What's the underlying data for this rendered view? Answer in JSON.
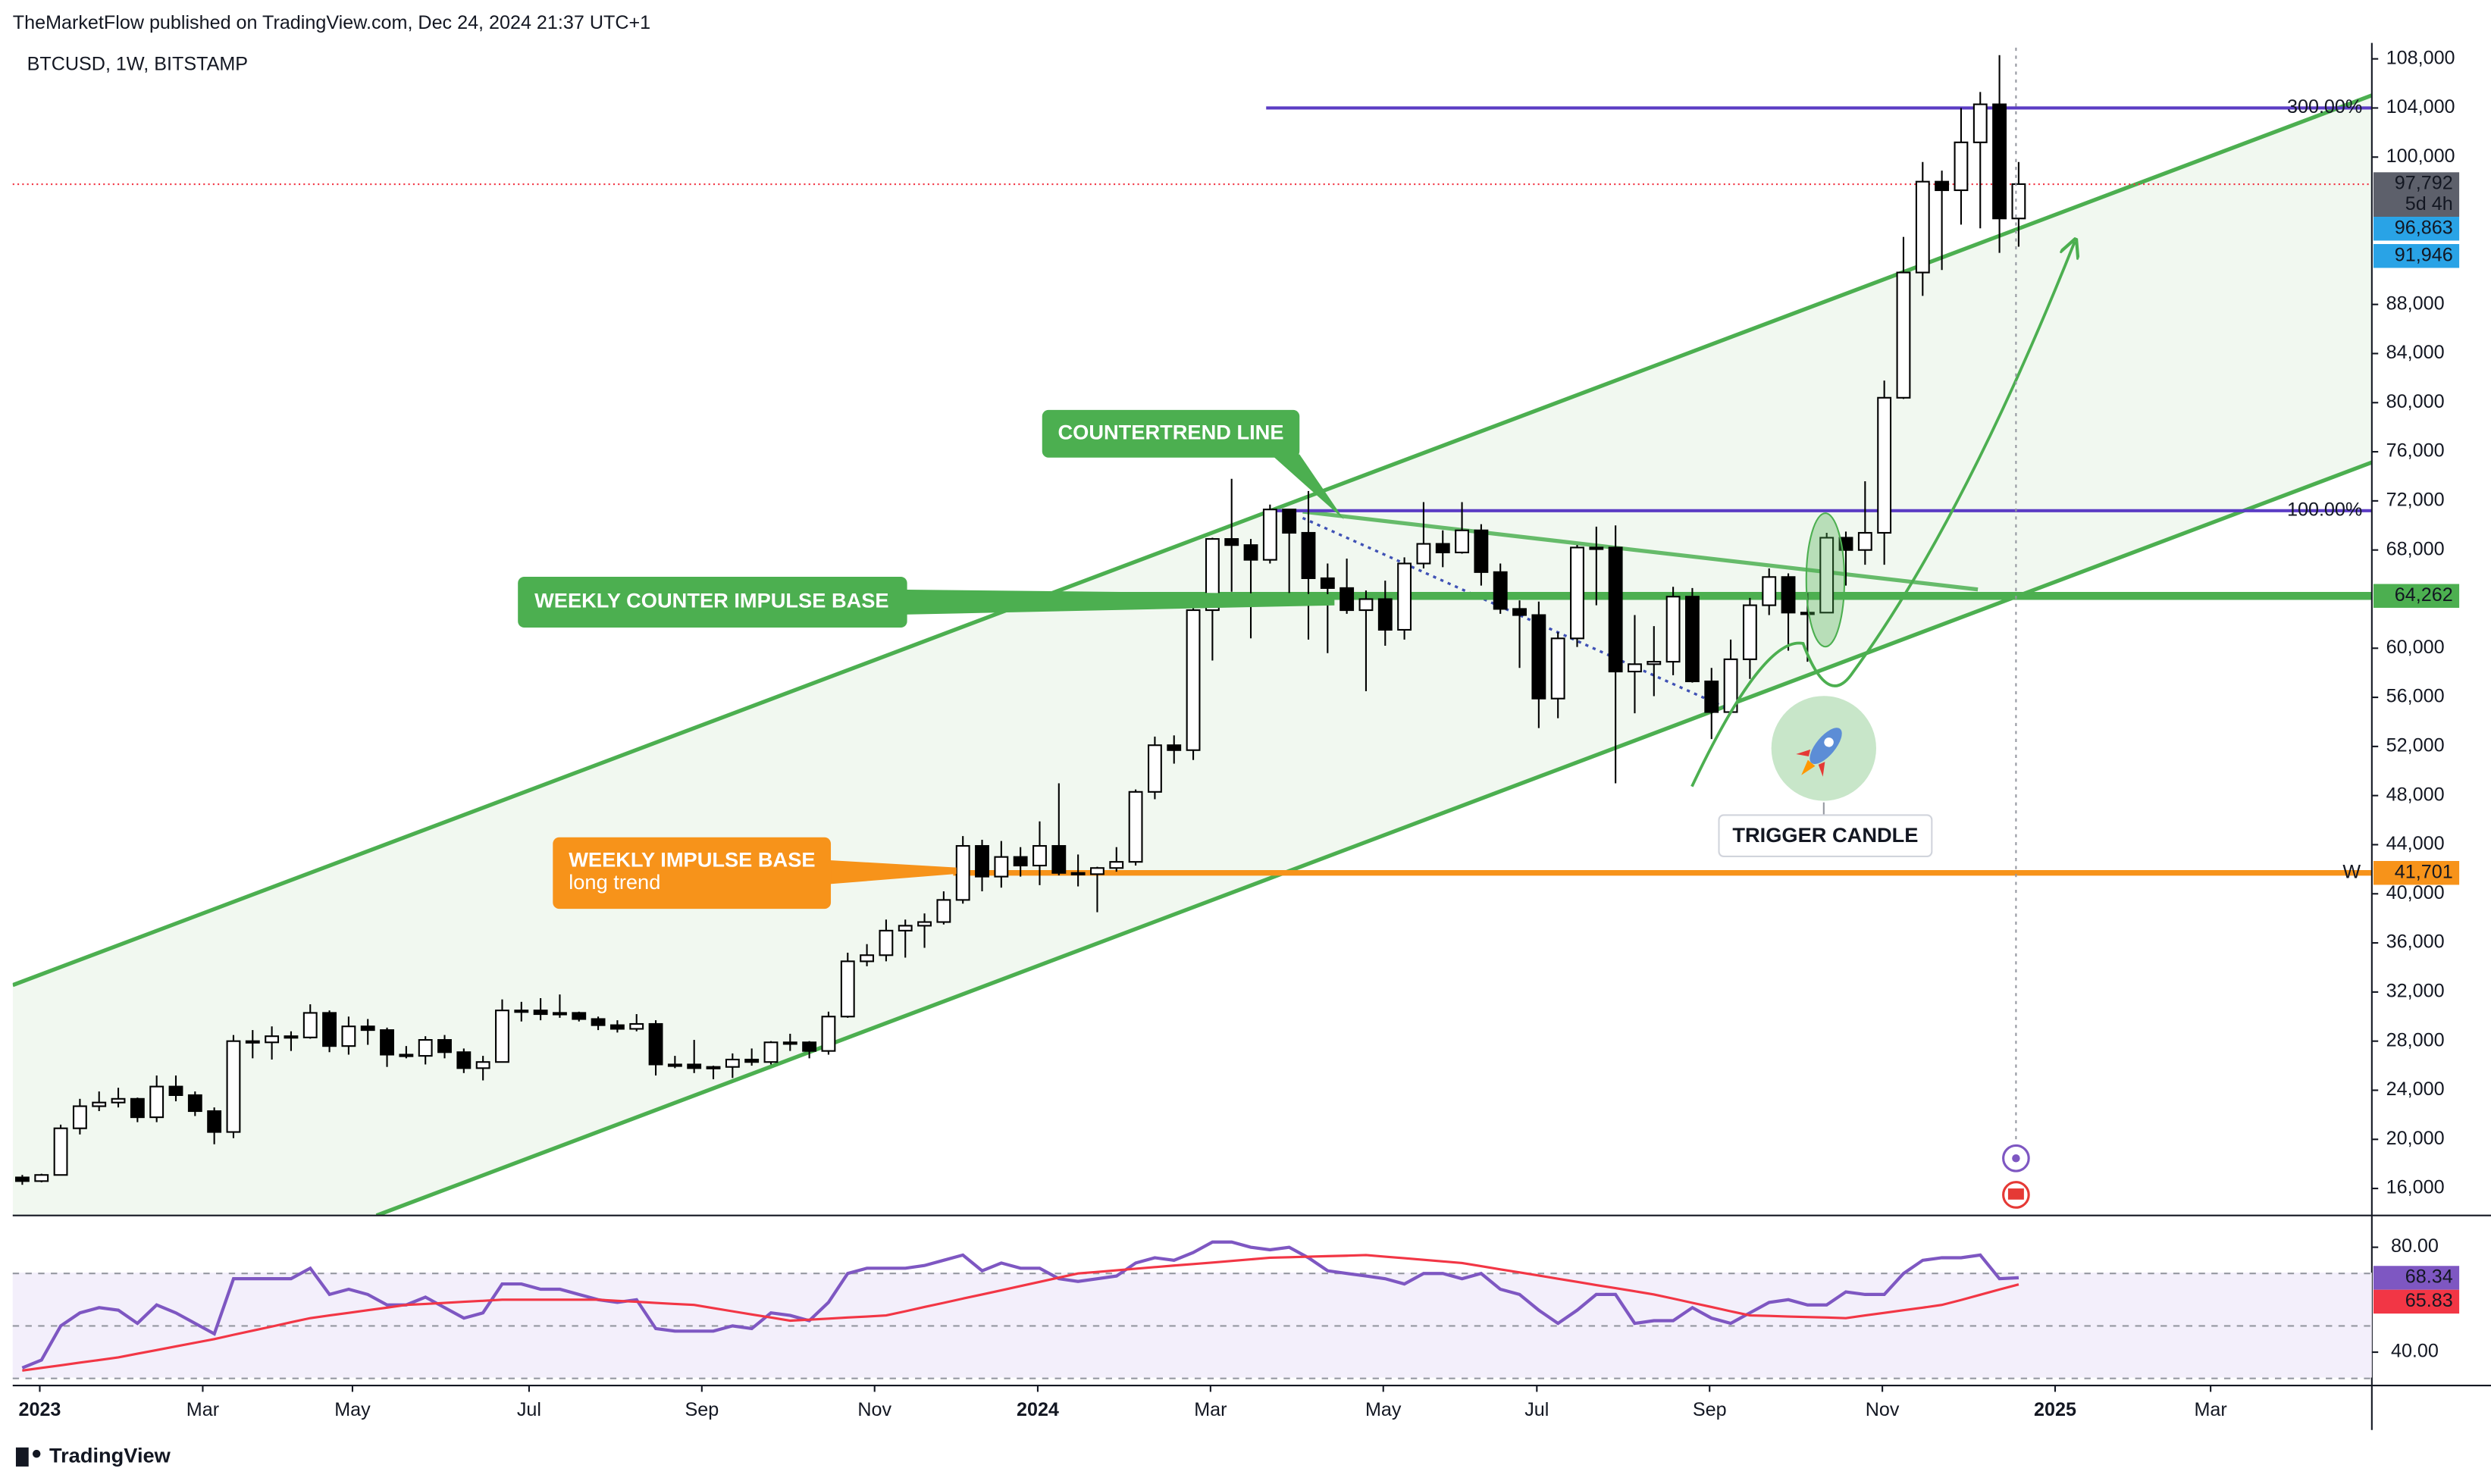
{
  "chart_data": {
    "type": "candlestick",
    "header": "TheMarketFlow published on TradingView.com, Dec 24, 2024 21:37 UTC+1",
    "title": "BTCUSD, 1W, BITSTAMP",
    "footer": "TradingView",
    "categories": [
      null,
      null,
      null,
      null,
      null,
      null,
      null,
      null,
      null,
      null,
      null,
      null,
      null,
      null,
      null,
      null,
      null,
      null,
      null,
      null,
      null,
      null,
      null,
      null,
      null,
      null,
      null,
      null,
      null,
      null,
      null,
      null,
      null,
      null,
      null,
      null,
      null,
      null,
      null,
      null,
      null,
      null,
      null,
      null,
      null,
      null,
      null,
      null,
      null,
      null,
      null,
      null,
      null,
      null,
      null,
      null,
      null,
      null,
      null,
      null,
      null,
      null,
      null,
      null,
      null,
      null,
      null,
      null,
      null,
      null,
      null,
      null,
      null,
      null,
      null,
      null,
      null,
      null,
      null,
      null,
      null,
      null,
      null,
      null,
      null,
      null,
      null,
      null,
      null,
      null,
      null,
      null,
      null,
      null,
      null,
      null,
      null,
      null,
      null,
      null,
      null,
      null,
      null,
      null,
      null
    ],
    "candles": [
      [
        16900,
        17100,
        16300,
        16600
      ],
      [
        16600,
        17200,
        16500,
        17100
      ],
      [
        17100,
        21200,
        17100,
        20900
      ],
      [
        20900,
        23300,
        20400,
        22700
      ],
      [
        22700,
        23900,
        22300,
        23000
      ],
      [
        23000,
        24200,
        22600,
        23300
      ],
      [
        23300,
        23400,
        21400,
        21800
      ],
      [
        21800,
        25200,
        21400,
        24300
      ],
      [
        24300,
        25200,
        23100,
        23600
      ],
      [
        23600,
        23900,
        21900,
        22300
      ],
      [
        22300,
        22600,
        19600,
        20600
      ],
      [
        20600,
        28500,
        20100,
        28000
      ],
      [
        28000,
        28900,
        26600,
        27900
      ],
      [
        27900,
        29200,
        26500,
        28400
      ],
      [
        28400,
        28800,
        27200,
        28300
      ],
      [
        28300,
        31000,
        28200,
        30300
      ],
      [
        30300,
        30500,
        27100,
        27600
      ],
      [
        27600,
        30000,
        26900,
        29200
      ],
      [
        29200,
        29800,
        27700,
        28900
      ],
      [
        28900,
        29100,
        25900,
        26900
      ],
      [
        26900,
        27600,
        26600,
        26800
      ],
      [
        26800,
        28400,
        26100,
        28100
      ],
      [
        28100,
        28500,
        26600,
        27100
      ],
      [
        27100,
        27400,
        25400,
        25800
      ],
      [
        25800,
        26800,
        24800,
        26300
      ],
      [
        26300,
        31400,
        26300,
        30500
      ],
      [
        30500,
        31200,
        29600,
        30500
      ],
      [
        30500,
        31500,
        29700,
        30200
      ],
      [
        30200,
        31800,
        29900,
        30300
      ],
      [
        30300,
        30400,
        29600,
        29800
      ],
      [
        29800,
        30000,
        28900,
        29300
      ],
      [
        29300,
        29700,
        28700,
        29000
      ],
      [
        29000,
        30200,
        28800,
        29400
      ],
      [
        29400,
        29700,
        25200,
        26100
      ],
      [
        26100,
        26800,
        25800,
        26100
      ],
      [
        26100,
        28100,
        25400,
        25800
      ],
      [
        25800,
        26000,
        24900,
        25900
      ],
      [
        25900,
        27000,
        25000,
        26500
      ],
      [
        26500,
        27400,
        26000,
        26300
      ],
      [
        26300,
        28000,
        26100,
        27900
      ],
      [
        27900,
        28600,
        27200,
        27900
      ],
      [
        27900,
        28000,
        26600,
        27200
      ],
      [
        27200,
        30400,
        26900,
        30000
      ],
      [
        30000,
        35200,
        29900,
        34500
      ],
      [
        34500,
        35900,
        34100,
        35000
      ],
      [
        35000,
        37900,
        34500,
        37000
      ],
      [
        37000,
        37900,
        34800,
        37400
      ],
      [
        37400,
        38400,
        35600,
        37700
      ],
      [
        37700,
        40200,
        37500,
        39500
      ],
      [
        39500,
        44700,
        39200,
        43900
      ],
      [
        43900,
        44400,
        40200,
        41400
      ],
      [
        41400,
        44300,
        40500,
        43000
      ],
      [
        43000,
        43800,
        41400,
        42300
      ],
      [
        42300,
        45900,
        40700,
        43900
      ],
      [
        43900,
        49000,
        41500,
        41700
      ],
      [
        41700,
        43200,
        40600,
        41600
      ],
      [
        41600,
        42200,
        38500,
        42100
      ],
      [
        42100,
        43800,
        41800,
        42600
      ],
      [
        42600,
        48500,
        42300,
        48300
      ],
      [
        48300,
        52800,
        47700,
        52100
      ],
      [
        52100,
        52900,
        50600,
        51700
      ],
      [
        51700,
        63900,
        50900,
        63100
      ],
      [
        63100,
        69000,
        59000,
        68900
      ],
      [
        68900,
        73800,
        64600,
        68400
      ],
      [
        68400,
        68900,
        60800,
        67200
      ],
      [
        67200,
        71700,
        66900,
        71300
      ],
      [
        71300,
        71300,
        64500,
        69400
      ],
      [
        69400,
        72800,
        60700,
        65700
      ],
      [
        65700,
        66900,
        59600,
        64900
      ],
      [
        64900,
        67300,
        62800,
        63100
      ],
      [
        63100,
        64700,
        56500,
        64000
      ],
      [
        64000,
        65500,
        60200,
        61500
      ],
      [
        61500,
        67400,
        60700,
        66900
      ],
      [
        66900,
        71900,
        66500,
        68500
      ],
      [
        68500,
        69600,
        66600,
        67800
      ],
      [
        67800,
        71900,
        67700,
        69600
      ],
      [
        69600,
        70100,
        65100,
        66200
      ],
      [
        66200,
        66900,
        62800,
        63200
      ],
      [
        63200,
        63900,
        58400,
        62700
      ],
      [
        62700,
        63800,
        53500,
        55900
      ],
      [
        55900,
        61300,
        54300,
        60800
      ],
      [
        60800,
        68400,
        60100,
        68200
      ],
      [
        68200,
        69900,
        63500,
        68200
      ],
      [
        68200,
        70000,
        49000,
        58100
      ],
      [
        58100,
        62700,
        54700,
        58700
      ],
      [
        58700,
        61800,
        56100,
        58900
      ],
      [
        58900,
        65000,
        57800,
        64200
      ],
      [
        64200,
        64900,
        57200,
        57300
      ],
      [
        57300,
        58400,
        52600,
        54800
      ],
      [
        54800,
        60700,
        54700,
        59100
      ],
      [
        59100,
        64100,
        57500,
        63500
      ],
      [
        63500,
        66500,
        62700,
        65800
      ],
      [
        65800,
        66100,
        59800,
        62900
      ],
      [
        62900,
        64500,
        58900,
        62900
      ],
      [
        62900,
        69400,
        62900,
        69000
      ],
      [
        69000,
        69500,
        65100,
        68000
      ],
      [
        68000,
        73600,
        66800,
        69400
      ],
      [
        69400,
        81800,
        66800,
        80400
      ],
      [
        80400,
        93500,
        80300,
        90600
      ],
      [
        90600,
        99600,
        88700,
        98000
      ],
      [
        98000,
        98900,
        90800,
        97300
      ],
      [
        97300,
        104000,
        94500,
        101200
      ],
      [
        101200,
        105300,
        94200,
        104300
      ],
      [
        104300,
        108300,
        92200,
        95000
      ],
      [
        95000,
        99600,
        92700,
        97800
      ]
    ],
    "up_color": "#ffffff",
    "down_color": "#000000",
    "outline_color": "#000000",
    "xlim": [
      -0.5,
      122.4
    ],
    "xticks": [
      {
        "value": 0.91,
        "label": "2023"
      },
      {
        "value": 9.4,
        "label": "Mar"
      },
      {
        "value": 17.2,
        "label": "May"
      },
      {
        "value": 26.4,
        "label": "Jul"
      },
      {
        "value": 35.4,
        "label": "Sep"
      },
      {
        "value": 44.4,
        "label": "Nov"
      },
      {
        "value": 52.9,
        "label": "2024"
      },
      {
        "value": 61.9,
        "label": "Mar"
      },
      {
        "value": 70.9,
        "label": "May"
      },
      {
        "value": 78.9,
        "label": "Jul"
      },
      {
        "value": 87.9,
        "label": "Sep"
      },
      {
        "value": 96.9,
        "label": "Nov"
      },
      {
        "value": 105.9,
        "label": "2025"
      },
      {
        "value": 114,
        "label": "Mar"
      }
    ],
    "ylim": [
      13800,
      109300
    ],
    "yticks": [
      {
        "value": 108000,
        "label": "108,000"
      },
      {
        "value": 104000,
        "label": "104,000"
      },
      {
        "value": 100000,
        "label": "100,000"
      },
      {
        "value": 88000,
        "label": "88,000"
      },
      {
        "value": 84000,
        "label": "84,000"
      },
      {
        "value": 80000,
        "label": "80,000"
      },
      {
        "value": 76000,
        "label": "76,000"
      },
      {
        "value": 72000,
        "label": "72,000"
      },
      {
        "value": 68000,
        "label": "68,000"
      },
      {
        "value": 60000,
        "label": "60,000"
      },
      {
        "value": 56000,
        "label": "56,000"
      },
      {
        "value": 52000,
        "label": "52,000"
      },
      {
        "value": 48000,
        "label": "48,000"
      },
      {
        "value": 44000,
        "label": "44,000"
      },
      {
        "value": 40000,
        "label": "40,000"
      },
      {
        "value": 36000,
        "label": "36,000"
      },
      {
        "value": 32000,
        "label": "32,000"
      },
      {
        "value": 28000,
        "label": "28,000"
      },
      {
        "value": 24000,
        "label": "24,000"
      },
      {
        "value": 20000,
        "label": "20,000"
      },
      {
        "value": 16000,
        "label": "16,000"
      }
    ],
    "levels": [
      {
        "value": 104000,
        "label": "300.00%",
        "color": "#5b3cc4",
        "style": "fib"
      },
      {
        "value": 71200,
        "label": "100.00%",
        "color": "#5b3cc4",
        "style": "fib"
      },
      {
        "value": 64262,
        "label": "64,262",
        "color": "#4caf50",
        "style": "base"
      },
      {
        "value": 41701,
        "label": "41,701",
        "color": "#f7931a",
        "style": "base",
        "tag": "W"
      }
    ],
    "price_labels": [
      {
        "value": 97792,
        "label": "97,792",
        "sub": "5d 4h",
        "color": "#5d606b"
      },
      {
        "value": 96863,
        "label": "96,863",
        "color": "#29a3e6"
      },
      {
        "value": 91946,
        "label": "91,946",
        "color": "#29a3e6"
      }
    ],
    "current_line_color": "#f23645",
    "annotations": {
      "countertrend": "COUNTERTREND LINE",
      "counter_base": "WEEKLY COUNTER IMPULSE BASE",
      "impulse_base": [
        "WEEKLY IMPULSE BASE",
        "long trend"
      ],
      "trigger": "TRIGGER CANDLE"
    },
    "rsi": {
      "ylim": [
        27.3,
        91.5
      ],
      "yticks": [
        {
          "value": 80,
          "label": "80.00"
        },
        {
          "value": 40,
          "label": "40.00"
        }
      ],
      "bands": [
        70,
        50,
        30
      ],
      "series": [
        {
          "color": "#7e57c2",
          "values": [
            34,
            37,
            50,
            55,
            57,
            56,
            51,
            58,
            55,
            51,
            47,
            68,
            68,
            68,
            68,
            72,
            62,
            64,
            62,
            58,
            58,
            61,
            57,
            53,
            55,
            66,
            66,
            64,
            64,
            62,
            60,
            59,
            60,
            49,
            48,
            48,
            48,
            50,
            49,
            55,
            54,
            52,
            59,
            70,
            72,
            72,
            72,
            73,
            75,
            77,
            71,
            74,
            72,
            72,
            68,
            67,
            68,
            69,
            74,
            76,
            75,
            78,
            82,
            82,
            80,
            79,
            80,
            76,
            71,
            70,
            69,
            68,
            66,
            70,
            70,
            68,
            70,
            64,
            62,
            56,
            51,
            56,
            62,
            62,
            51,
            52,
            52,
            57,
            53,
            51,
            55,
            59,
            60,
            58,
            58,
            63,
            62,
            62,
            70,
            75,
            76,
            76,
            77,
            68,
            68.34
          ]
        },
        {
          "color": "#f23645",
          "values": [
            33,
            34,
            35,
            36,
            37,
            38,
            39.4,
            40.8,
            42.2,
            43.6,
            45,
            46.6,
            48.2,
            49.8,
            51.4,
            53,
            54,
            55,
            56,
            57,
            58,
            58.4,
            58.8,
            59.2,
            59.6,
            60,
            60,
            60,
            60,
            60,
            60,
            59.6,
            59.2,
            58.8,
            58.4,
            58,
            56.8,
            55.6,
            54.4,
            53.2,
            52,
            52.4,
            52.8,
            53.2,
            53.6,
            54,
            55.6,
            57.2,
            58.8,
            60.4,
            62,
            63.6,
            65.2,
            66.8,
            68.4,
            70,
            70.6,
            71.2,
            71.8,
            72.4,
            73,
            73.6,
            74.2,
            74.8,
            75.4,
            76,
            76.2,
            76.4,
            76.6,
            76.8,
            77,
            76.4,
            75.8,
            75.2,
            74.6,
            74,
            72.8,
            71.6,
            70.4,
            69.2,
            68,
            66.8,
            65.6,
            64.4,
            63.2,
            62,
            60.4,
            58.8,
            57.2,
            55.6,
            54,
            53.8,
            53.6,
            53.4,
            53.2,
            53,
            54,
            55,
            56,
            57,
            58,
            59.9,
            61.9,
            63.9,
            65.83
          ]
        }
      ]
    }
  }
}
